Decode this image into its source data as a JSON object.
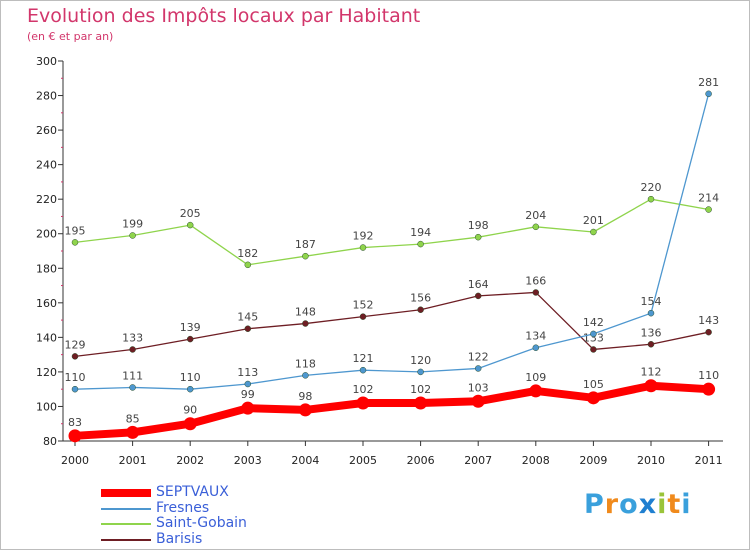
{
  "title": "Evolution des Impôts locaux par Habitant",
  "subtitle": "(en € et par an)",
  "logo": {
    "letters": [
      "P",
      "r",
      "o",
      "x",
      "i",
      "t",
      "i"
    ],
    "colors": [
      "#3aa0dc",
      "#f08a1c",
      "#3aa0dc",
      "#1f7fd0",
      "#9ac43a",
      "#f08a1c",
      "#3aa0dc"
    ]
  },
  "chart_data": {
    "type": "line",
    "x": [
      "2000",
      "2001",
      "2002",
      "2003",
      "2004",
      "2005",
      "2006",
      "2007",
      "2008",
      "2009",
      "2010",
      "2011"
    ],
    "ylim": [
      80,
      300
    ],
    "yticks": [
      80,
      100,
      120,
      140,
      160,
      180,
      200,
      220,
      240,
      260,
      280,
      300
    ],
    "grid": false,
    "legend_position": "bottom-left",
    "series": [
      {
        "name": "Saint-Gobain",
        "color": "#8fd44c",
        "values": [
          195,
          199,
          205,
          182,
          187,
          192,
          194,
          198,
          204,
          201,
          220,
          214
        ]
      },
      {
        "name": "Barisis",
        "color": "#6e1e24",
        "values": [
          129,
          133,
          139,
          145,
          148,
          152,
          156,
          164,
          166,
          133,
          136,
          143
        ]
      },
      {
        "name": "Fresnes",
        "color": "#4e97cf",
        "values": [
          110,
          111,
          110,
          113,
          118,
          121,
          120,
          122,
          134,
          142,
          154,
          281
        ]
      },
      {
        "name": "SEPTVAUX",
        "color": "#ff0000",
        "values": [
          83,
          85,
          90,
          99,
          98,
          102,
          102,
          103,
          109,
          105,
          112,
          110
        ]
      }
    ],
    "legend_order": [
      "SEPTVAUX",
      "Fresnes",
      "Saint-Gobain",
      "Barisis"
    ]
  }
}
